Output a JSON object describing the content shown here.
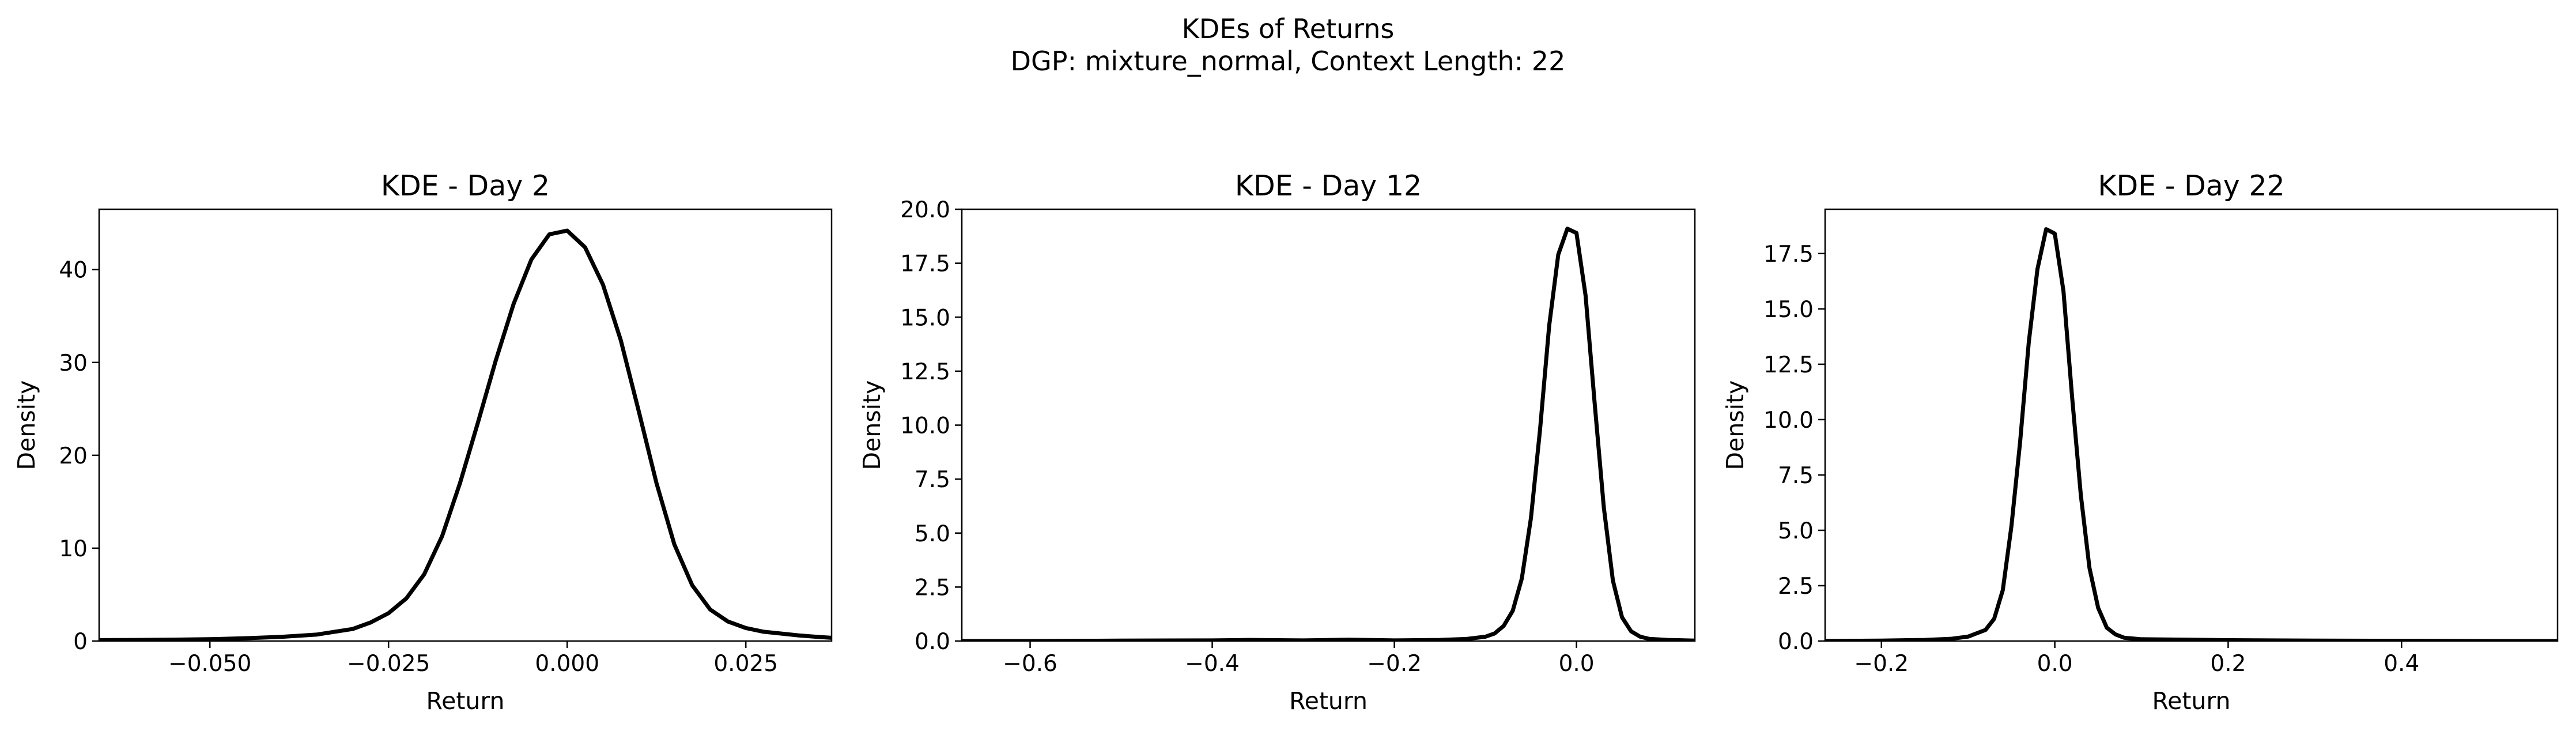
{
  "figure": {
    "title_line1": "KDEs of Returns",
    "title_line2": "DGP: mixture_normal, Context Length: 22"
  },
  "chart_data": [
    {
      "type": "line",
      "title": "KDE - Day 2",
      "xlabel": "Return",
      "ylabel": "Density",
      "xlim": [
        -0.0655,
        0.037
      ],
      "ylim": [
        0,
        46.5
      ],
      "xticks": [
        -0.05,
        -0.025,
        0.0,
        0.025
      ],
      "xtick_labels": [
        "−0.050",
        "−0.025",
        "0.000",
        "0.025"
      ],
      "yticks": [
        0,
        10,
        20,
        30,
        40
      ],
      "ytick_labels": [
        "0",
        "10",
        "20",
        "30",
        "40"
      ],
      "line_color": "#000000",
      "x": [
        -0.0655,
        -0.06,
        -0.055,
        -0.05,
        -0.045,
        -0.04,
        -0.035,
        -0.03,
        -0.0275,
        -0.025,
        -0.0225,
        -0.02,
        -0.0175,
        -0.015,
        -0.0125,
        -0.01,
        -0.0075,
        -0.005,
        -0.0025,
        0.0,
        0.0025,
        0.005,
        0.0075,
        0.01,
        0.0125,
        0.015,
        0.0175,
        0.02,
        0.0225,
        0.025,
        0.0275,
        0.03,
        0.0325,
        0.035,
        0.037
      ],
      "y": [
        0.1,
        0.12,
        0.15,
        0.2,
        0.3,
        0.45,
        0.7,
        1.3,
        2.0,
        3.0,
        4.6,
        7.2,
        11.3,
        17.0,
        23.5,
        30.2,
        36.3,
        41.1,
        43.8,
        44.2,
        42.4,
        38.4,
        32.4,
        24.8,
        17.0,
        10.4,
        6.0,
        3.4,
        2.1,
        1.4,
        1.0,
        0.8,
        0.6,
        0.45,
        0.35
      ]
    },
    {
      "type": "line",
      "title": "KDE - Day 12",
      "xlabel": "Return",
      "ylabel": "Density",
      "xlim": [
        -0.675,
        0.13
      ],
      "ylim": [
        0,
        20.0
      ],
      "xticks": [
        -0.6,
        -0.4,
        -0.2,
        0.0
      ],
      "xtick_labels": [
        "−0.6",
        "−0.4",
        "−0.2",
        "0.0"
      ],
      "yticks": [
        0.0,
        2.5,
        5.0,
        7.5,
        10.0,
        12.5,
        15.0,
        17.5,
        20.0
      ],
      "ytick_labels": [
        "0.0",
        "2.5",
        "5.0",
        "7.5",
        "10.0",
        "12.5",
        "15.0",
        "17.5",
        "20.0"
      ],
      "line_color": "#000000",
      "x": [
        -0.675,
        -0.6,
        -0.5,
        -0.4,
        -0.36,
        -0.3,
        -0.25,
        -0.2,
        -0.15,
        -0.12,
        -0.1,
        -0.09,
        -0.08,
        -0.07,
        -0.06,
        -0.05,
        -0.04,
        -0.03,
        -0.02,
        -0.01,
        0.0,
        0.01,
        0.02,
        0.03,
        0.04,
        0.05,
        0.06,
        0.07,
        0.08,
        0.1,
        0.13
      ],
      "y": [
        0.0,
        0.0,
        0.02,
        0.03,
        0.05,
        0.03,
        0.06,
        0.03,
        0.05,
        0.1,
        0.2,
        0.35,
        0.7,
        1.4,
        2.9,
        5.7,
        9.8,
        14.6,
        17.9,
        19.1,
        18.9,
        16.0,
        11.0,
        6.2,
        2.8,
        1.1,
        0.45,
        0.2,
        0.1,
        0.05,
        0.02
      ]
    },
    {
      "type": "line",
      "title": "KDE - Day 22",
      "xlabel": "Return",
      "ylabel": "Density",
      "xlim": [
        -0.265,
        0.58
      ],
      "ylim": [
        0,
        19.5
      ],
      "xticks": [
        -0.2,
        0.0,
        0.2,
        0.4
      ],
      "xtick_labels": [
        "−0.2",
        "0.0",
        "0.2",
        "0.4"
      ],
      "yticks": [
        0.0,
        2.5,
        5.0,
        7.5,
        10.0,
        12.5,
        15.0,
        17.5
      ],
      "ytick_labels": [
        "0.0",
        "2.5",
        "5.0",
        "7.5",
        "10.0",
        "12.5",
        "15.0",
        "17.5"
      ],
      "line_color": "#000000",
      "x": [
        -0.265,
        -0.2,
        -0.15,
        -0.12,
        -0.1,
        -0.08,
        -0.07,
        -0.06,
        -0.05,
        -0.04,
        -0.03,
        -0.02,
        -0.01,
        0.0,
        0.01,
        0.02,
        0.03,
        0.04,
        0.05,
        0.06,
        0.07,
        0.08,
        0.1,
        0.2,
        0.3,
        0.4,
        0.5,
        0.58
      ],
      "y": [
        0.0,
        0.02,
        0.05,
        0.1,
        0.2,
        0.5,
        1.0,
        2.3,
        5.2,
        9.0,
        13.5,
        16.8,
        18.6,
        18.4,
        15.8,
        11.0,
        6.6,
        3.3,
        1.5,
        0.6,
        0.3,
        0.15,
        0.08,
        0.04,
        0.02,
        0.01,
        0.0,
        0.0
      ]
    }
  ]
}
